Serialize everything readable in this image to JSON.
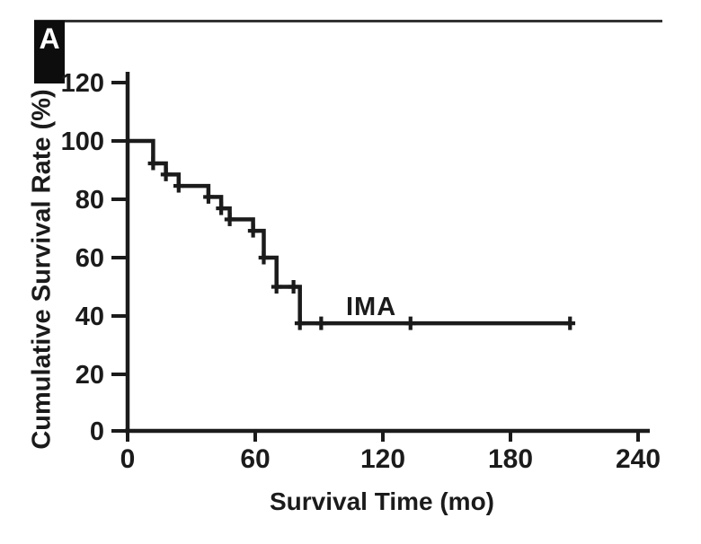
{
  "panel": {
    "label": "A"
  },
  "chart_data": {
    "type": "line",
    "subtype": "kaplan-meier-step",
    "title": "",
    "xlabel": "Survival Time (mo)",
    "ylabel": "Cumulative Survival Rate (%)",
    "x_ticks": [
      0,
      60,
      120,
      180,
      240
    ],
    "y_ticks": [
      0,
      20,
      40,
      60,
      80,
      100,
      120
    ],
    "xlim": [
      0,
      240
    ],
    "ylim": [
      0,
      120
    ],
    "grid": false,
    "legend_position": "inline-annotation",
    "line_color": "#1b1b1b",
    "series": [
      {
        "name": "IMA",
        "steps": [
          {
            "t": 0,
            "s": 100
          },
          {
            "t": 12,
            "s": 92.3
          },
          {
            "t": 18,
            "s": 88.5
          },
          {
            "t": 24,
            "s": 84.6
          },
          {
            "t": 38,
            "s": 80.8
          },
          {
            "t": 44,
            "s": 76.9
          },
          {
            "t": 48,
            "s": 73.1
          },
          {
            "t": 59,
            "s": 69.2
          },
          {
            "t": 64,
            "s": 60
          },
          {
            "t": 70,
            "s": 50
          },
          {
            "t": 81,
            "s": 37.5
          }
        ],
        "end_time": 208,
        "censor_marks": [
          {
            "t": 12,
            "s": 92.3
          },
          {
            "t": 18,
            "s": 88.5
          },
          {
            "t": 24,
            "s": 84.6
          },
          {
            "t": 38,
            "s": 80.8
          },
          {
            "t": 44,
            "s": 76.9
          },
          {
            "t": 48,
            "s": 73.1
          },
          {
            "t": 59,
            "s": 69.2
          },
          {
            "t": 64,
            "s": 60
          },
          {
            "t": 70,
            "s": 50
          },
          {
            "t": 78,
            "s": 50
          },
          {
            "t": 81,
            "s": 37.5
          },
          {
            "t": 91,
            "s": 37.5
          },
          {
            "t": 133,
            "s": 37.5
          },
          {
            "t": 208,
            "s": 37.5
          }
        ]
      }
    ]
  }
}
